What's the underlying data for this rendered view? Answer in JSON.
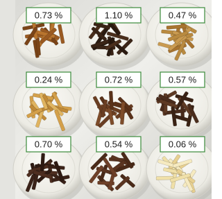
{
  "labels": [
    "0.73 %",
    "1.10 %",
    "0.47 %",
    "0.24 %",
    "0.72 %",
    "0.57 %",
    "0.70 %",
    "0.54 %",
    "0.06 %"
  ]
}
